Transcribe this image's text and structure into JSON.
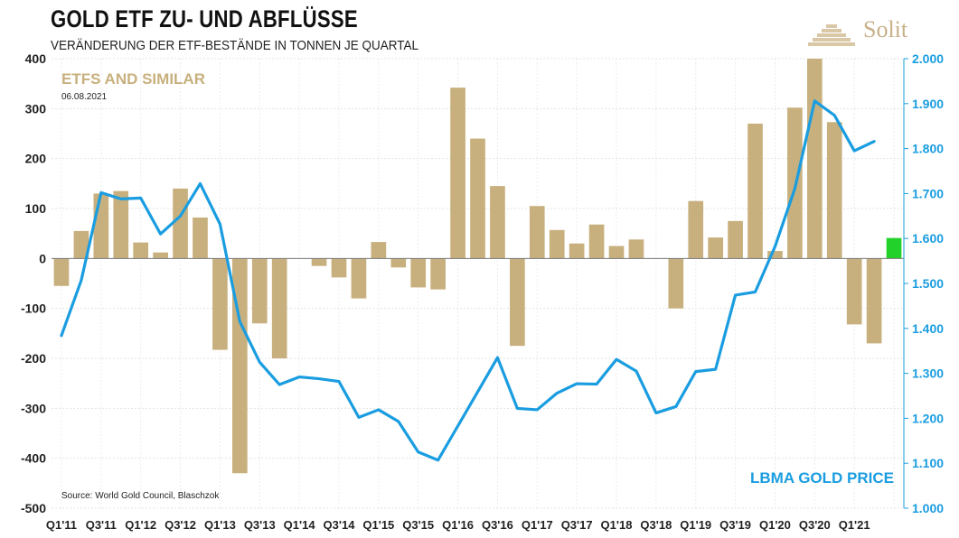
{
  "header": {
    "title": "GOLD ETF ZU- UND ABFLÜSSE",
    "subtitle": "VERÄNDERUNG DER ETF-BESTÄNDE IN TONNEN JE QUARTAL"
  },
  "brand": {
    "name": "Solit"
  },
  "chart_data": {
    "type": "bar+line",
    "title": "GOLD ETF ZU- UND ABFLÜSSE",
    "subtitle": "VERÄNDERUNG DER ETF-BESTÄNDE IN TONNEN JE QUARTAL",
    "bar_series_label": "ETFS AND SIMILAR",
    "date": "06.08.2021",
    "line_series_label": "LBMA GOLD PRICE",
    "source": "Source: World Gold Council, Blaschzok",
    "x_tick_labels": [
      "Q1'11",
      "Q3'11",
      "Q1'12",
      "Q3'12",
      "Q1'13",
      "Q3'13",
      "Q1'14",
      "Q3'14",
      "Q1'15",
      "Q3'15",
      "Q1'16",
      "Q3'16",
      "Q1'17",
      "Q3'17",
      "Q1'18",
      "Q3'18",
      "Q1'19",
      "Q3'19",
      "Q1'20",
      "Q3'20",
      "Q1'21"
    ],
    "x_tick_every": 2,
    "left_axis": {
      "ticks": [
        "400",
        "300",
        "200",
        "100",
        "0",
        "-100",
        "-200",
        "-300",
        "-400",
        "-500"
      ],
      "ylim": [
        -500,
        400
      ]
    },
    "right_axis": {
      "ticks": [
        "2.000",
        "1.900",
        "1.800",
        "1.700",
        "1.600",
        "1.500",
        "1.400",
        "1.300",
        "1.200",
        "1.100",
        "1.000"
      ],
      "ylim": [
        1000,
        2000
      ]
    },
    "categories": [
      "Q1'11",
      "Q2'11",
      "Q3'11",
      "Q4'11",
      "Q1'12",
      "Q2'12",
      "Q3'12",
      "Q4'12",
      "Q1'13",
      "Q2'13",
      "Q3'13",
      "Q4'13",
      "Q1'14",
      "Q2'14",
      "Q3'14",
      "Q4'14",
      "Q1'15",
      "Q2'15",
      "Q3'15",
      "Q4'15",
      "Q1'16",
      "Q2'16",
      "Q3'16",
      "Q4'16",
      "Q1'17",
      "Q2'17",
      "Q3'17",
      "Q4'17",
      "Q1'18",
      "Q2'18",
      "Q3'18",
      "Q4'18",
      "Q1'19",
      "Q2'19",
      "Q3'19",
      "Q4'19",
      "Q1'20",
      "Q2'20",
      "Q3'20",
      "Q4'20",
      "Q1'21",
      "Q2'21",
      "Q3'21"
    ],
    "etf_flows_tonnes": [
      -55,
      55,
      130,
      135,
      32,
      12,
      140,
      82,
      -183,
      -430,
      -130,
      -200,
      0,
      -15,
      -38,
      -80,
      33,
      -18,
      -58,
      -62,
      342,
      240,
      145,
      -175,
      105,
      57,
      30,
      68,
      25,
      38,
      0,
      -100,
      115,
      42,
      75,
      270,
      15,
      302,
      400,
      273,
      -132,
      -170,
      null
    ],
    "current_quarter_flow": {
      "category": "Q3'21",
      "value": 41,
      "color": "#22d22a"
    },
    "lbma_gold_price": [
      1384,
      1507,
      1702,
      1688,
      1690,
      1610,
      1650,
      1722,
      1632,
      1415,
      1325,
      1275,
      1292,
      1288,
      1282,
      1202,
      1219,
      1193,
      1125,
      1107,
      1183,
      1259,
      1335,
      1222,
      1219,
      1256,
      1277,
      1276,
      1331,
      1305,
      1212,
      1226,
      1304,
      1309,
      1474,
      1481,
      1582,
      1711,
      1906,
      1874,
      1795,
      1816,
      null
    ],
    "colors": {
      "bars": "#c8b07e",
      "line": "#1a9de0",
      "current_bar": "#22d22a",
      "right_axis_text": "#1a9de0"
    }
  }
}
